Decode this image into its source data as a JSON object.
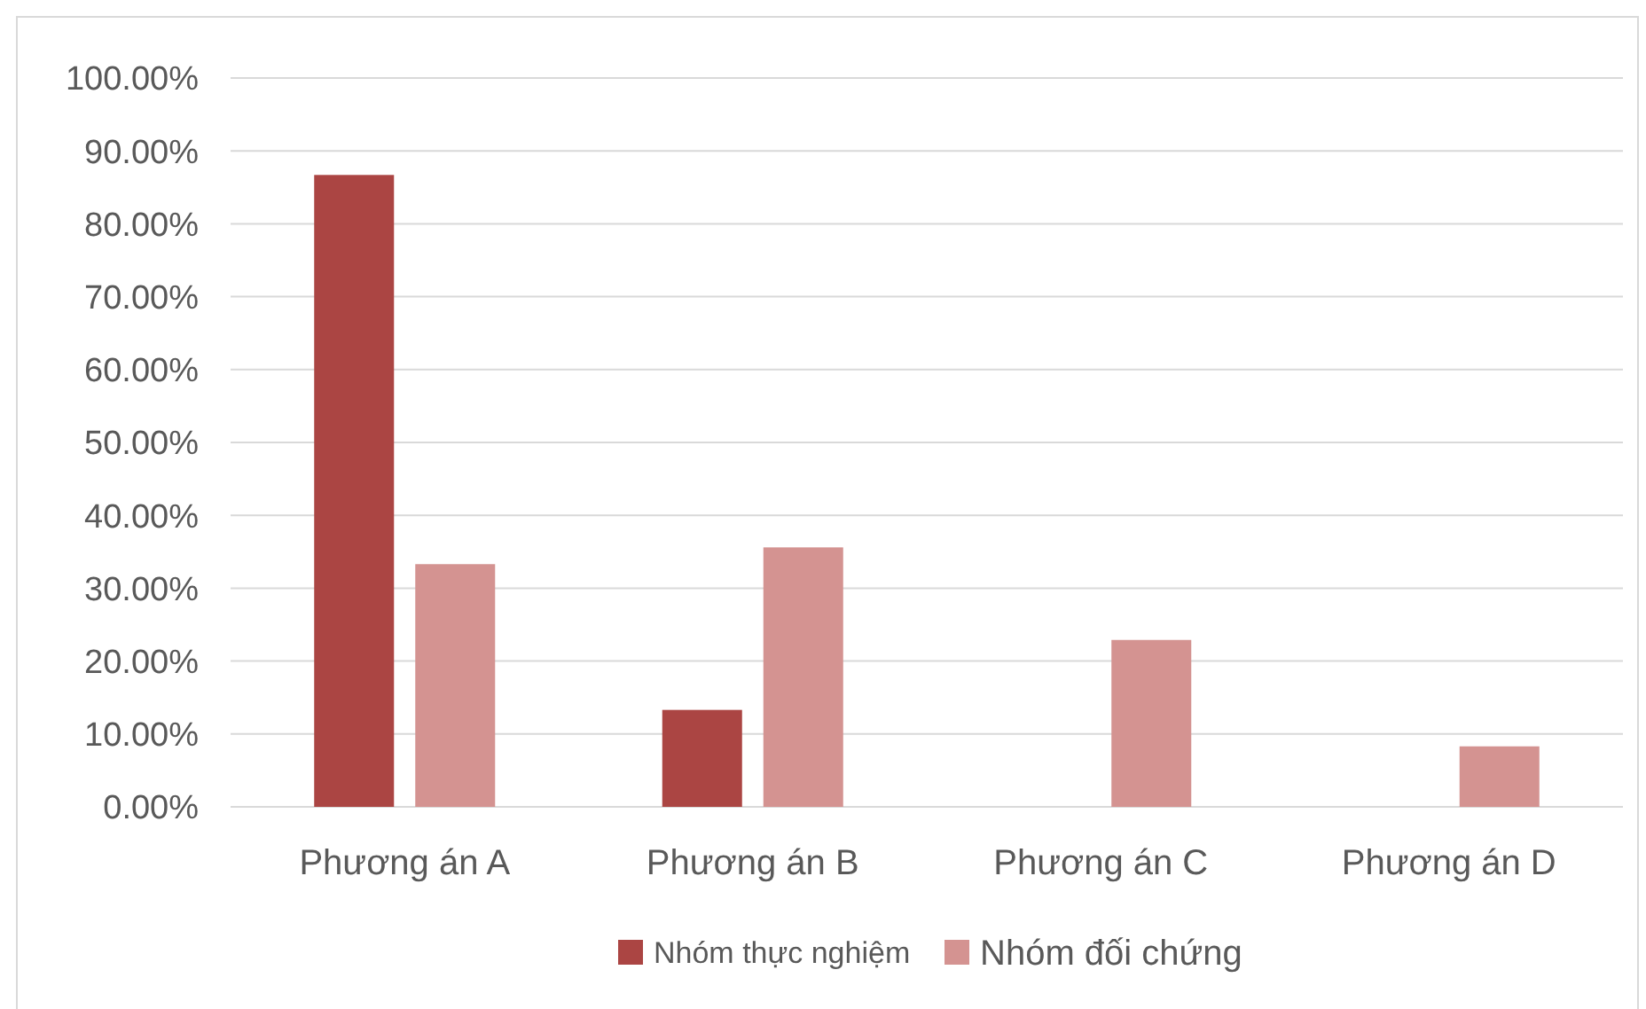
{
  "chart_data": {
    "type": "bar",
    "categories": [
      "Phương án A",
      "Phương án B",
      "Phương án C",
      "Phương án D"
    ],
    "series": [
      {
        "name": "Nhóm thực nghiệm",
        "color": "#ab4543",
        "values": [
          86.7,
          13.3,
          0,
          0
        ]
      },
      {
        "name": "Nhóm đối chứng",
        "color": "#d49391",
        "values": [
          33.3,
          35.6,
          22.9,
          8.3
        ]
      }
    ],
    "ylim": [
      0,
      100
    ],
    "yticks": [
      {
        "value": 0,
        "label": "0.00%"
      },
      {
        "value": 10,
        "label": "10.00%"
      },
      {
        "value": 20,
        "label": "20.00%"
      },
      {
        "value": 30,
        "label": "30.00%"
      },
      {
        "value": 40,
        "label": "40.00%"
      },
      {
        "value": 50,
        "label": "50.00%"
      },
      {
        "value": 60,
        "label": "60.00%"
      },
      {
        "value": 70,
        "label": "70.00%"
      },
      {
        "value": 80,
        "label": "80.00%"
      },
      {
        "value": 90,
        "label": "90.00%"
      },
      {
        "value": 100,
        "label": "100.00%"
      }
    ],
    "grid": "y",
    "legend": "bottom"
  }
}
